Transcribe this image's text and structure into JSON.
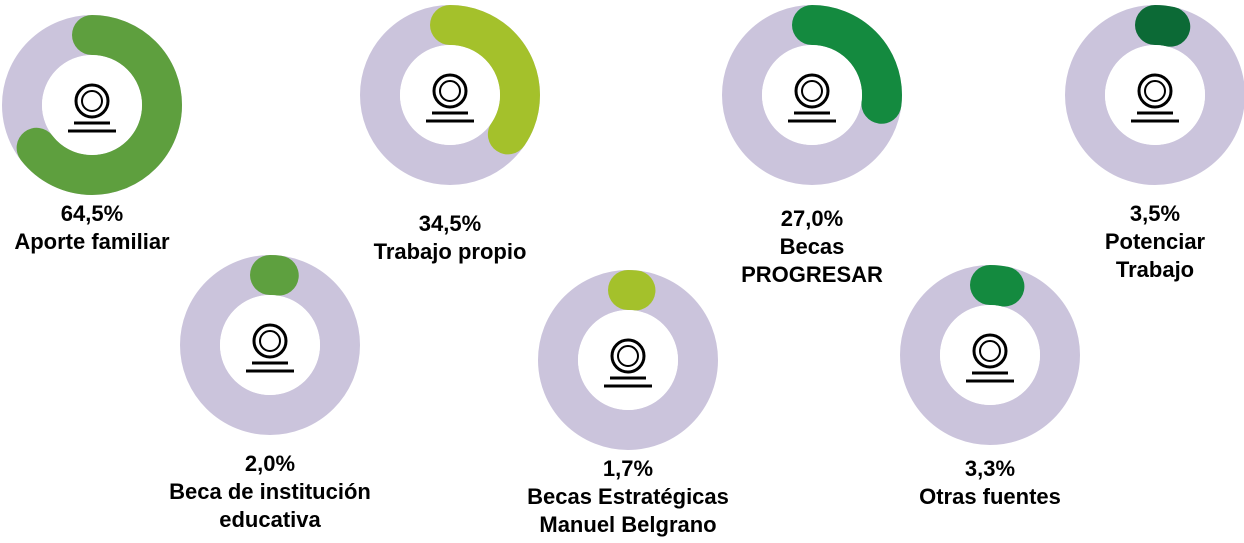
{
  "chart_data": {
    "type": "radial-gauge",
    "categories": [
      "Aporte familiar",
      "Trabajo propio",
      "Becas PROGRESAR",
      "Potenciar Trabajo",
      "Beca de institución educativa",
      "Becas Estratégicas Manuel Belgrano",
      "Otras fuentes"
    ],
    "values": [
      64.5,
      34.5,
      27.0,
      3.5,
      2.0,
      1.7,
      3.3
    ],
    "value_labels": [
      "64,5%",
      "34,5%",
      "27,0%",
      "3,5%",
      "2,0%",
      "1,7%",
      "3,3%"
    ],
    "ylim": [
      0,
      100
    ],
    "colors": [
      "#5e9f3e",
      "#a4c12b",
      "#148a3f",
      "#0c6a36",
      "#5ea03f",
      "#a4c12b",
      "#148a3f"
    ],
    "track_color": "#cbc4dc"
  }
}
